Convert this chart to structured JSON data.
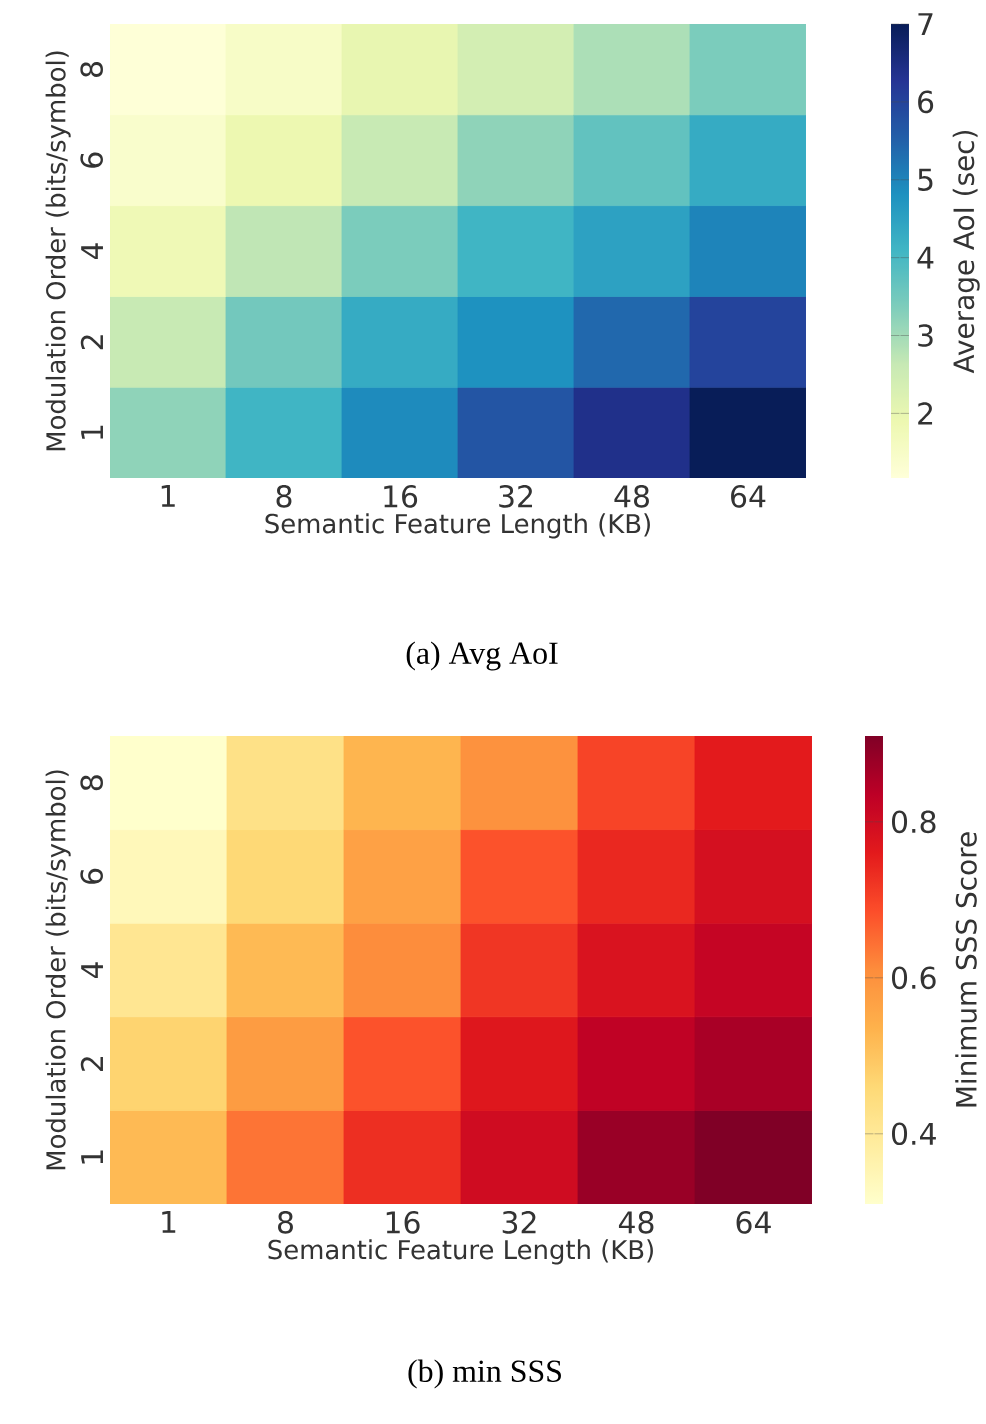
{
  "chart_data": [
    {
      "type": "heatmap",
      "xlabel": "Semantic Feature Length (KB)",
      "ylabel": "Modulation Order (bits/symbol)",
      "clabel": "Average AoI (sec)",
      "annotations": [
        "(a) Avg AoI"
      ],
      "categories": [
        "1",
        "8",
        "16",
        "32",
        "48",
        "64"
      ],
      "y_categories": [
        "8",
        "6",
        "4",
        "2",
        "1"
      ],
      "cells": [
        [
          1.2,
          1.5,
          2.0,
          2.4,
          2.9,
          3.4
        ],
        [
          1.4,
          1.9,
          2.6,
          3.2,
          3.7,
          4.3
        ],
        [
          1.8,
          2.7,
          3.4,
          4.1,
          4.5,
          5.0
        ],
        [
          2.6,
          3.5,
          4.3,
          4.8,
          5.4,
          6.0
        ],
        [
          3.2,
          4.1,
          4.9,
          5.7,
          6.4,
          7.0
        ]
      ],
      "clim": [
        1.17,
        7
      ],
      "cticks": [
        2,
        3,
        4,
        5,
        6,
        7
      ],
      "grid": false
    },
    {
      "type": "heatmap",
      "xlabel": "Semantic Feature Length (KB)",
      "ylabel": "Modulation Order (bits/symbol)",
      "clabel": "Minimum SSS Score",
      "annotations": [
        "(b) min SSS"
      ],
      "categories": [
        "1",
        "8",
        "16",
        "32",
        "48",
        "64"
      ],
      "y_categories": [
        "8",
        "6",
        "4",
        "2",
        "1"
      ],
      "cells": [
        [
          0.31,
          0.43,
          0.53,
          0.6,
          0.7,
          0.76
        ],
        [
          0.34,
          0.46,
          0.57,
          0.68,
          0.74,
          0.79
        ],
        [
          0.41,
          0.52,
          0.61,
          0.72,
          0.78,
          0.82
        ],
        [
          0.47,
          0.58,
          0.68,
          0.77,
          0.83,
          0.86
        ],
        [
          0.52,
          0.64,
          0.73,
          0.8,
          0.88,
          0.91
        ]
      ],
      "clim": [
        0.31,
        0.91
      ],
      "cticks": [
        0.4,
        0.6,
        0.8
      ],
      "grid": false
    }
  ]
}
